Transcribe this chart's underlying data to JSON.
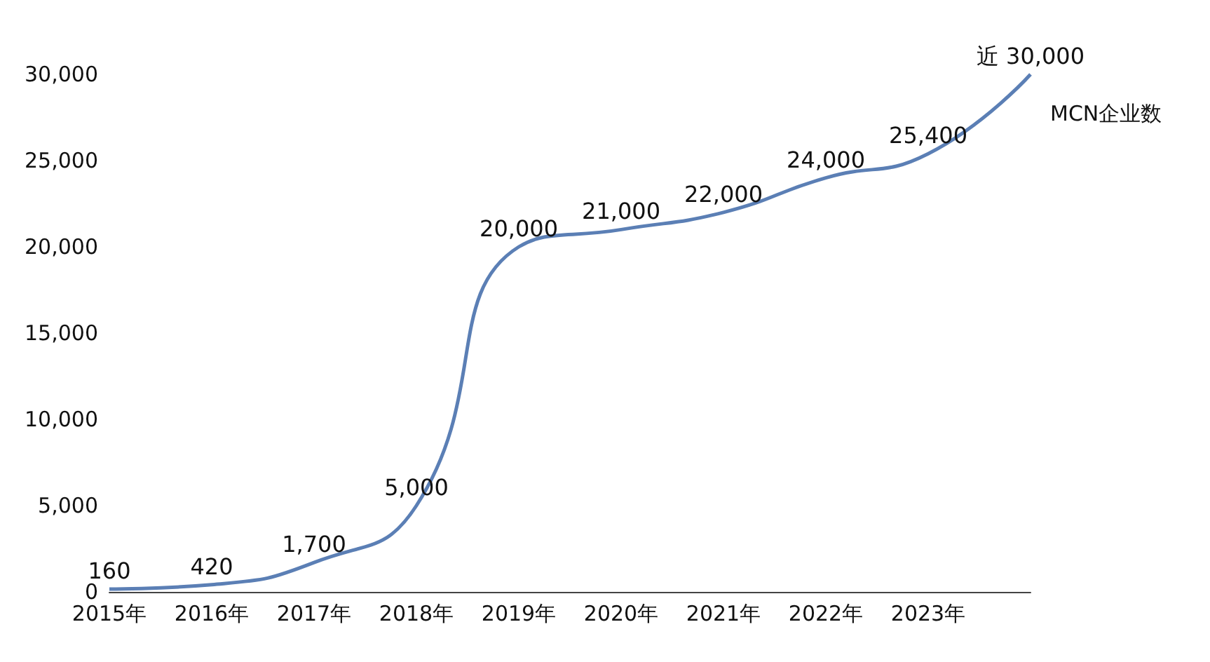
{
  "chart_data": {
    "type": "line",
    "categories": [
      "2015年",
      "2016年",
      "2017年",
      "2018年",
      "2019年",
      "2020年",
      "2021年",
      "2022年",
      "2023年",
      null
    ],
    "series": [
      {
        "name": "MCN企业数",
        "color": "#5b7fb5",
        "values": [
          160,
          420,
          1700,
          5000,
          20000,
          21000,
          22000,
          24000,
          25400,
          30000
        ],
        "value_labels": [
          "160",
          "420",
          "1,700",
          "5,000",
          "20,000",
          "21,000",
          "22,000",
          "24,000",
          "25,400",
          "近 30,000"
        ]
      }
    ],
    "ylim": [
      0,
      30000
    ],
    "yticks": [
      {
        "value": 0,
        "label": "0"
      },
      {
        "value": 5000,
        "label": "5,000"
      },
      {
        "value": 10000,
        "label": "10,000"
      },
      {
        "value": 15000,
        "label": "15,000"
      },
      {
        "value": 20000,
        "label": "20,000"
      },
      {
        "value": 25000,
        "label": "25,000"
      },
      {
        "value": 30000,
        "label": "30,000"
      }
    ],
    "grid": false,
    "marker": "none",
    "line_style": "solid"
  }
}
